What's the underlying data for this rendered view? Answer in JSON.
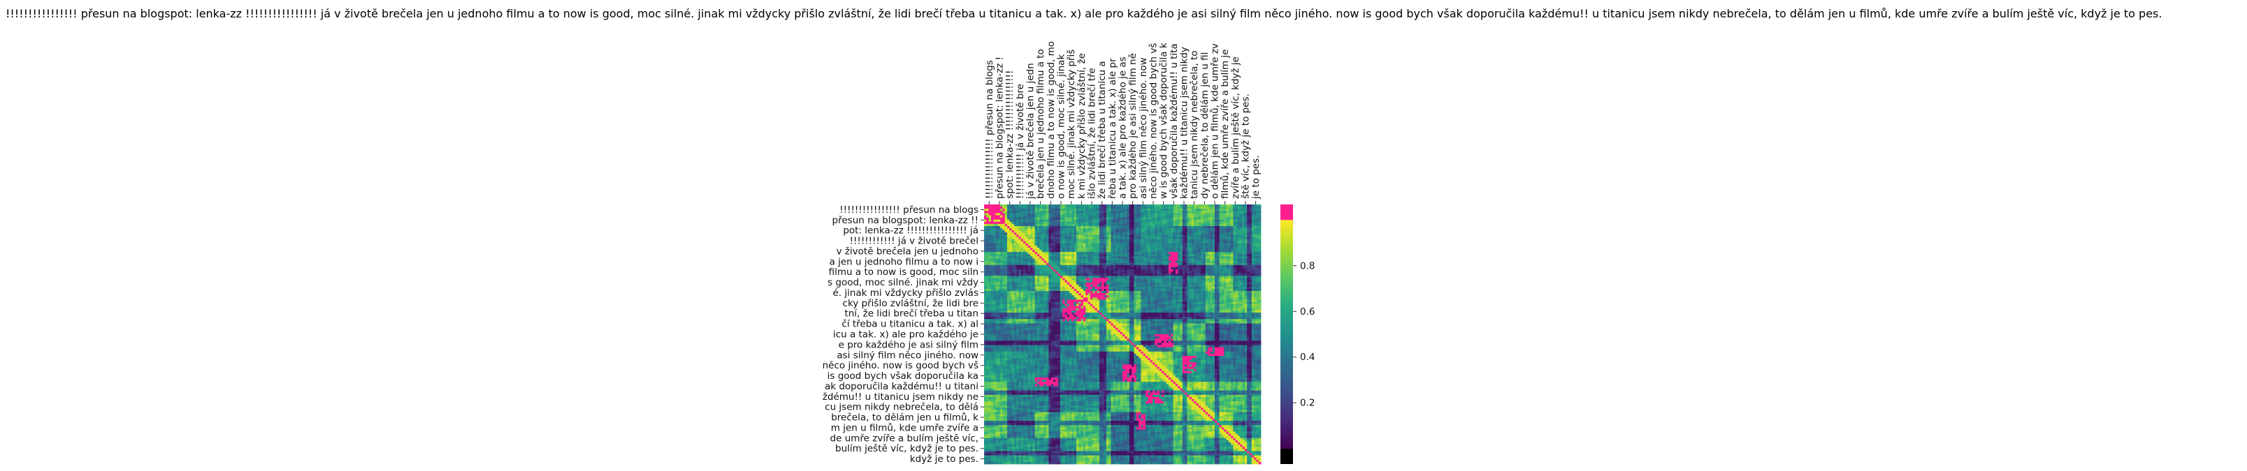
{
  "chart_data": {
    "type": "heatmap",
    "title": "!!!!!!!!!!!!!!!! přesun na blogspot: lenka-zz !!!!!!!!!!!!!!!! já v životě brečela jen u jednoho filmu a to now is good, moc silné. jinak mi vždycky přišlo zvláštní, že lidi brečí třeba u titanicu a tak. x) ale pro každého je asi silný film něco jiného. now is good bych však doporučila každému!! u titanicu jsem nikdy nebrečela, to dělám jen u filmů, kde umře zvíře a bulím ještě víc, když je to pes.",
    "row_labels": [
      "!!!!!!!!!!!!!!!! přesun na blogs",
      "přesun na blogspot: lenka-zz !!",
      "pot: lenka-zz !!!!!!!!!!!!!!!! já",
      "!!!!!!!!!!!! já v životě brečel",
      "v životě brečela jen u jednoho",
      "a jen u jednoho filmu a to now i",
      "filmu a to now is good, moc siln",
      "s good, moc silné. jinak mi vždy",
      "é. jinak mi vždycky přišlo zvlás",
      "cky přišlo zvláštní, že lidi bre",
      "tní, že lidi brečí třeba u titan",
      "čí třeba u titanicu a tak. x) al",
      "icu a tak. x) ale pro každého je",
      "e pro každého je asi silný film",
      "asi silný film něco jiného. now",
      "něco jiného. now is good bych vš",
      "is good bych však doporučila ka",
      "ak doporučila každému!! u titani",
      "ždému!! u titanicu jsem nikdy ne",
      "cu jsem nikdy nebrečela, to dělá",
      "brečela, to dělám jen u filmů, k",
      "m jen u filmů, kde umře zvíře a",
      "de umře zvíře a bulím ještě víc,",
      "bulím ještě víc, když je to pes.",
      "když je to pes."
    ],
    "col_labels": [
      "!!!!!!!!!!!!!!!! přesun na blogs",
      "přesun na blogspot: lenka-zz !",
      "spot: lenka-zz !!!!!!!!!!!!!!!!",
      "!!!!!!!!!!!! já v životě bre",
      "já v životě brečela jen u jedn",
      "brečela jen u jednoho filmu a to",
      "dnoho filmu a to now is good, mo",
      "o now is good, moc silné. jinak",
      "moc silné. jinak mi vždycky přiš",
      "k mi vždycky přišlo zvláštní, že",
      "išlo zvláštní, že lidi brečí tře",
      "že lidi brečí třeba u titanicu a",
      "řeba u titanicu a tak. x) ale pr",
      "a tak. x) ale pro každého je as",
      "pro každého je asi silný film ně",
      "asi silný film něco jiného. now",
      "něco jiného. now is good bych vš",
      "w is good bych však doporučila k",
      "však doporučila každému!! u tita",
      "každému!! u titanicu jsem nikdy",
      "tanicu jsem nikdy nebrečela, to",
      "dy nebrečela, to dělám jen u fil",
      "o dělám jen u filmů, kde umře zv",
      "filmů, kde umře zvíře a bulím je",
      "zvíře a bulím ještě víc, když je",
      "ště víc, když je to pes.",
      "je to pes."
    ],
    "colorbar": {
      "ticks": [
        0.2,
        0.4,
        0.6,
        0.8
      ],
      "range": [
        0,
        1
      ],
      "colormap": "viridis",
      "overflow_color": "#ff1f8e",
      "underflow_color": "#000000"
    },
    "grid": false,
    "legend": "colorbar-right"
  }
}
